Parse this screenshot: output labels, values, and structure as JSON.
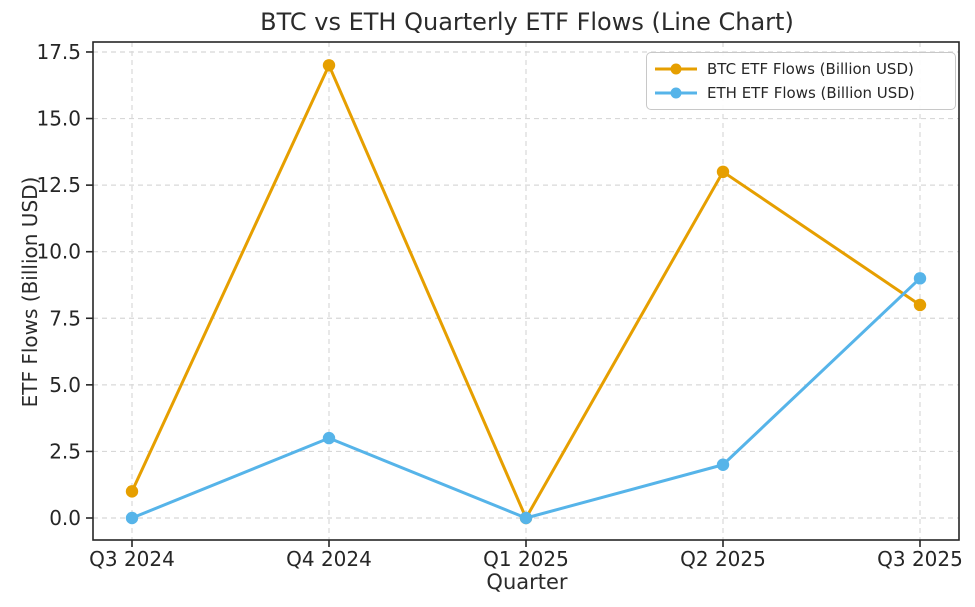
{
  "chart_data": {
    "type": "line",
    "title": "BTC vs ETH Quarterly ETF Flows (Line Chart)",
    "xlabel": "Quarter",
    "ylabel": "ETF Flows (Billion USD)",
    "categories": [
      "Q3 2024",
      "Q4 2024",
      "Q1 2025",
      "Q2 2025",
      "Q3 2025"
    ],
    "series": [
      {
        "name": "BTC ETF Flows (Billion USD)",
        "color": "#E69F00",
        "values": [
          1,
          17,
          0,
          13,
          8
        ]
      },
      {
        "name": "ETH ETF Flows (Billion USD)",
        "color": "#56B4E9",
        "values": [
          0,
          3,
          0,
          2,
          9
        ]
      }
    ],
    "yticks": [
      0.0,
      2.5,
      5.0,
      7.5,
      10.0,
      12.5,
      15.0,
      17.5
    ],
    "ytick_labels": [
      "0.0",
      "2.5",
      "5.0",
      "7.5",
      "10.0",
      "12.5",
      "15.0",
      "17.5"
    ],
    "ylim": [
      -0.85,
      17.85
    ],
    "grid": true,
    "grid_style": "dashed",
    "grid_color": "#d8d8d8",
    "spine_color": "#262626",
    "text_color": "#262626",
    "legend_position": "upper right"
  }
}
